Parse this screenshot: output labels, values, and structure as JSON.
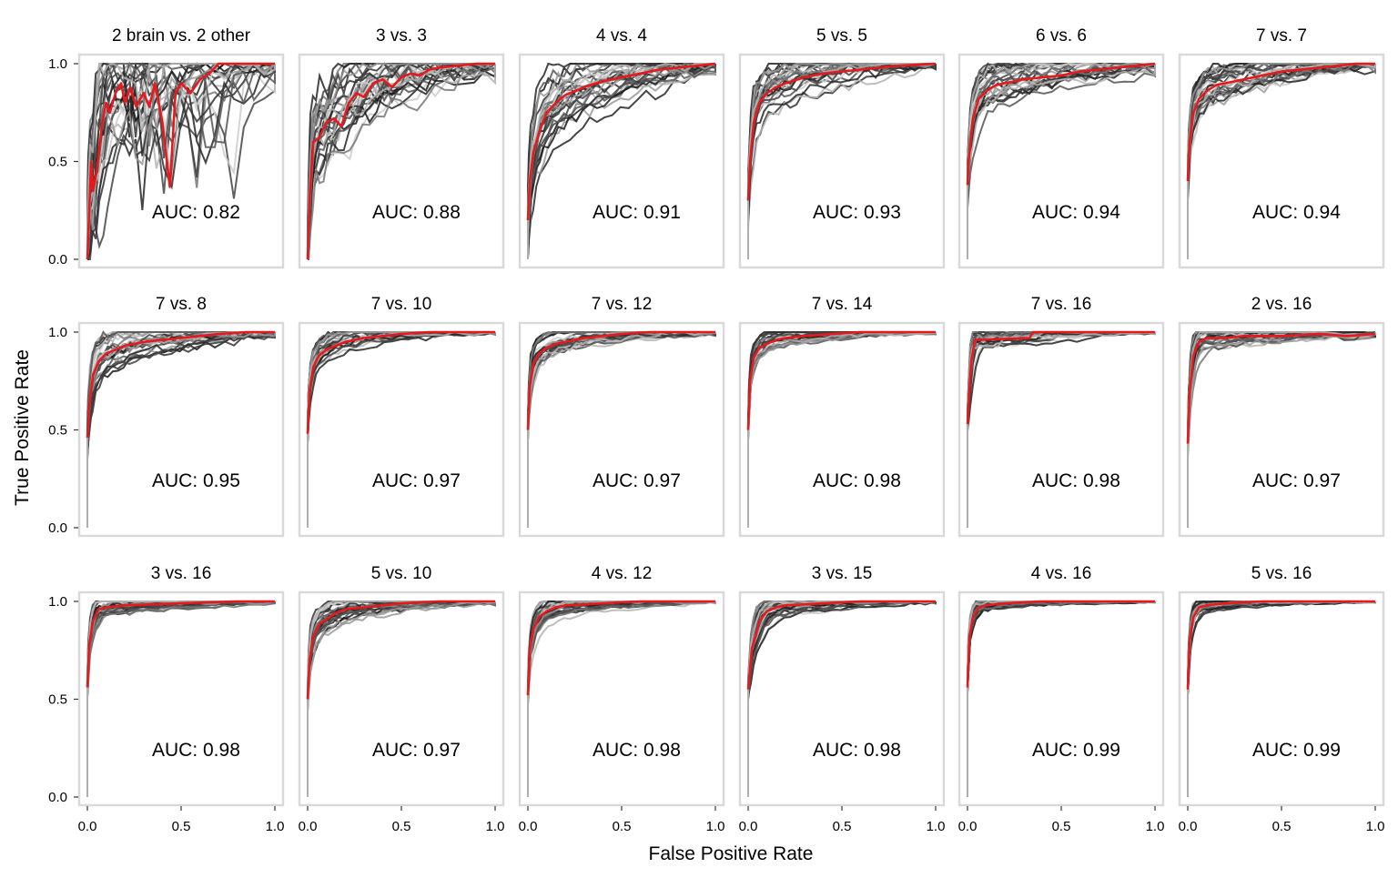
{
  "chart_data": {
    "type": "line",
    "xlabel": "False Positive Rate",
    "ylabel": "True Positive Rate",
    "xlim": [
      0,
      1
    ],
    "ylim": [
      0,
      1
    ],
    "x_ticks": [
      "0.0",
      "0.5",
      "1.0"
    ],
    "y_ticks": [
      "0.0",
      "0.5",
      "1.0"
    ],
    "grid": false,
    "legend": "none",
    "colors": {
      "mean_curve": "#e8191c",
      "bootstrap_curves": "#222222",
      "panel_border": "#d9d9d9"
    },
    "panels": [
      {
        "title": "2 brain vs. 2 other",
        "auc_label": "AUC: 0.82",
        "auc": 0.82,
        "mean_curve": [
          [
            0,
            0
          ],
          [
            0.02,
            0.5
          ],
          [
            0.03,
            0.35
          ],
          [
            0.05,
            0.45
          ],
          [
            0.08,
            0.7
          ],
          [
            0.1,
            0.8
          ],
          [
            0.12,
            0.75
          ],
          [
            0.15,
            0.85
          ],
          [
            0.18,
            0.9
          ],
          [
            0.2,
            0.8
          ],
          [
            0.23,
            0.88
          ],
          [
            0.26,
            0.78
          ],
          [
            0.3,
            0.85
          ],
          [
            0.33,
            0.78
          ],
          [
            0.36,
            0.9
          ],
          [
            0.4,
            0.7
          ],
          [
            0.44,
            0.37
          ],
          [
            0.47,
            0.85
          ],
          [
            0.5,
            0.9
          ],
          [
            0.55,
            0.85
          ],
          [
            0.6,
            0.92
          ],
          [
            0.65,
            0.95
          ],
          [
            0.7,
            1
          ],
          [
            1,
            1
          ]
        ]
      },
      {
        "title": "3 vs. 3",
        "auc_label": "AUC: 0.88",
        "auc": 0.88,
        "mean_curve": [
          [
            0,
            0
          ],
          [
            0.01,
            0.3
          ],
          [
            0.03,
            0.6
          ],
          [
            0.06,
            0.62
          ],
          [
            0.1,
            0.7
          ],
          [
            0.14,
            0.72
          ],
          [
            0.18,
            0.68
          ],
          [
            0.22,
            0.8
          ],
          [
            0.26,
            0.85
          ],
          [
            0.3,
            0.83
          ],
          [
            0.35,
            0.9
          ],
          [
            0.4,
            0.92
          ],
          [
            0.45,
            0.88
          ],
          [
            0.5,
            0.93
          ],
          [
            0.55,
            0.95
          ],
          [
            0.6,
            0.94
          ],
          [
            0.65,
            0.97
          ],
          [
            0.7,
            0.98
          ],
          [
            0.8,
            0.99
          ],
          [
            0.9,
            1
          ],
          [
            1,
            1
          ]
        ]
      },
      {
        "title": "4 vs. 4",
        "auc_label": "AUC: 0.91",
        "auc": 0.91,
        "mean_curve": [
          [
            0,
            0.2
          ],
          [
            0.01,
            0.4
          ],
          [
            0.03,
            0.55
          ],
          [
            0.06,
            0.65
          ],
          [
            0.1,
            0.75
          ],
          [
            0.15,
            0.8
          ],
          [
            0.2,
            0.84
          ],
          [
            0.3,
            0.88
          ],
          [
            0.4,
            0.91
          ],
          [
            0.5,
            0.93
          ],
          [
            0.6,
            0.95
          ],
          [
            0.7,
            0.97
          ],
          [
            0.8,
            0.98
          ],
          [
            0.9,
            0.99
          ],
          [
            1,
            1
          ]
        ]
      },
      {
        "title": "5 vs. 5",
        "auc_label": "AUC: 0.93",
        "auc": 0.93,
        "mean_curve": [
          [
            0,
            0.3
          ],
          [
            0.01,
            0.5
          ],
          [
            0.03,
            0.7
          ],
          [
            0.06,
            0.8
          ],
          [
            0.1,
            0.85
          ],
          [
            0.15,
            0.88
          ],
          [
            0.2,
            0.9
          ],
          [
            0.3,
            0.93
          ],
          [
            0.4,
            0.95
          ],
          [
            0.5,
            0.96
          ],
          [
            0.6,
            0.97
          ],
          [
            0.7,
            0.98
          ],
          [
            0.8,
            0.99
          ],
          [
            1,
            1
          ]
        ]
      },
      {
        "title": "6 vs. 6",
        "auc_label": "AUC: 0.94",
        "auc": 0.94,
        "mean_curve": [
          [
            0,
            0.38
          ],
          [
            0.01,
            0.55
          ],
          [
            0.03,
            0.72
          ],
          [
            0.06,
            0.82
          ],
          [
            0.1,
            0.86
          ],
          [
            0.15,
            0.89
          ],
          [
            0.2,
            0.9
          ],
          [
            0.3,
            0.92
          ],
          [
            0.4,
            0.93
          ],
          [
            0.5,
            0.94
          ],
          [
            0.6,
            0.96
          ],
          [
            0.7,
            0.97
          ],
          [
            0.8,
            0.98
          ],
          [
            0.9,
            0.99
          ],
          [
            1,
            1
          ]
        ]
      },
      {
        "title": "7 vs. 7",
        "auc_label": "AUC: 0.94",
        "auc": 0.94,
        "mean_curve": [
          [
            0,
            0.4
          ],
          [
            0.01,
            0.6
          ],
          [
            0.03,
            0.75
          ],
          [
            0.06,
            0.82
          ],
          [
            0.1,
            0.86
          ],
          [
            0.15,
            0.89
          ],
          [
            0.2,
            0.9
          ],
          [
            0.3,
            0.92
          ],
          [
            0.4,
            0.94
          ],
          [
            0.5,
            0.96
          ],
          [
            0.6,
            0.97
          ],
          [
            0.7,
            0.98
          ],
          [
            0.8,
            0.99
          ],
          [
            0.9,
            1
          ],
          [
            1,
            1
          ]
        ]
      },
      {
        "title": "7 vs. 8",
        "auc_label": "AUC: 0.95",
        "auc": 0.95,
        "mean_curve": [
          [
            0,
            0.46
          ],
          [
            0.01,
            0.62
          ],
          [
            0.03,
            0.78
          ],
          [
            0.06,
            0.85
          ],
          [
            0.1,
            0.89
          ],
          [
            0.15,
            0.91
          ],
          [
            0.2,
            0.93
          ],
          [
            0.3,
            0.95
          ],
          [
            0.4,
            0.96
          ],
          [
            0.5,
            0.97
          ],
          [
            0.6,
            0.98
          ],
          [
            0.7,
            0.99
          ],
          [
            0.85,
            1
          ],
          [
            1,
            1
          ]
        ]
      },
      {
        "title": "7 vs. 10",
        "auc_label": "AUC: 0.97",
        "auc": 0.97,
        "mean_curve": [
          [
            0,
            0.48
          ],
          [
            0.01,
            0.7
          ],
          [
            0.03,
            0.82
          ],
          [
            0.06,
            0.88
          ],
          [
            0.1,
            0.91
          ],
          [
            0.15,
            0.93
          ],
          [
            0.2,
            0.95
          ],
          [
            0.3,
            0.97
          ],
          [
            0.4,
            0.98
          ],
          [
            0.5,
            0.99
          ],
          [
            0.65,
            1
          ],
          [
            1,
            1
          ]
        ]
      },
      {
        "title": "7 vs. 12",
        "auc_label": "AUC: 0.97",
        "auc": 0.97,
        "mean_curve": [
          [
            0,
            0.5
          ],
          [
            0.01,
            0.72
          ],
          [
            0.03,
            0.84
          ],
          [
            0.06,
            0.89
          ],
          [
            0.1,
            0.92
          ],
          [
            0.15,
            0.94
          ],
          [
            0.2,
            0.95
          ],
          [
            0.3,
            0.97
          ],
          [
            0.4,
            0.98
          ],
          [
            0.5,
            0.99
          ],
          [
            0.65,
            1
          ],
          [
            1,
            1
          ]
        ]
      },
      {
        "title": "7 vs. 14",
        "auc_label": "AUC: 0.98",
        "auc": 0.98,
        "mean_curve": [
          [
            0,
            0.5
          ],
          [
            0.01,
            0.75
          ],
          [
            0.03,
            0.87
          ],
          [
            0.06,
            0.92
          ],
          [
            0.1,
            0.94
          ],
          [
            0.15,
            0.96
          ],
          [
            0.2,
            0.97
          ],
          [
            0.3,
            0.98
          ],
          [
            0.45,
            0.99
          ],
          [
            0.6,
            1
          ],
          [
            1,
            1
          ]
        ]
      },
      {
        "title": "7 vs. 16",
        "auc_label": "AUC: 0.98",
        "auc": 0.98,
        "mean_curve": [
          [
            0,
            0.53
          ],
          [
            0.01,
            0.7
          ],
          [
            0.02,
            0.85
          ],
          [
            0.04,
            0.96
          ],
          [
            0.33,
            0.97
          ],
          [
            0.35,
            1
          ],
          [
            1,
            1
          ]
        ]
      },
      {
        "title": "2 vs. 16",
        "auc_label": "AUC: 0.97",
        "auc": 0.97,
        "mean_curve": [
          [
            0,
            0.43
          ],
          [
            0.01,
            0.7
          ],
          [
            0.03,
            0.88
          ],
          [
            0.06,
            0.95
          ],
          [
            0.1,
            0.97
          ],
          [
            0.2,
            0.97
          ],
          [
            0.3,
            0.98
          ],
          [
            0.5,
            0.98
          ],
          [
            0.7,
            0.99
          ],
          [
            0.85,
            0.98
          ],
          [
            1,
            0.99
          ]
        ]
      },
      {
        "title": "3 vs. 16",
        "auc_label": "AUC: 0.98",
        "auc": 0.98,
        "mean_curve": [
          [
            0,
            0.56
          ],
          [
            0.01,
            0.78
          ],
          [
            0.03,
            0.9
          ],
          [
            0.06,
            0.96
          ],
          [
            0.1,
            0.97
          ],
          [
            0.2,
            0.98
          ],
          [
            0.5,
            0.99
          ],
          [
            0.8,
            1
          ],
          [
            1,
            1
          ]
        ]
      },
      {
        "title": "5 vs. 10",
        "auc_label": "AUC: 0.97",
        "auc": 0.97,
        "mean_curve": [
          [
            0,
            0.5
          ],
          [
            0.01,
            0.7
          ],
          [
            0.03,
            0.82
          ],
          [
            0.06,
            0.88
          ],
          [
            0.1,
            0.91
          ],
          [
            0.15,
            0.94
          ],
          [
            0.2,
            0.96
          ],
          [
            0.3,
            0.97
          ],
          [
            0.4,
            0.98
          ],
          [
            0.5,
            0.99
          ],
          [
            0.7,
            1
          ],
          [
            1,
            1
          ]
        ]
      },
      {
        "title": "4 vs. 12",
        "auc_label": "AUC: 0.98",
        "auc": 0.98,
        "mean_curve": [
          [
            0,
            0.52
          ],
          [
            0.01,
            0.75
          ],
          [
            0.03,
            0.86
          ],
          [
            0.06,
            0.92
          ],
          [
            0.1,
            0.95
          ],
          [
            0.15,
            0.97
          ],
          [
            0.2,
            0.98
          ],
          [
            0.4,
            0.99
          ],
          [
            0.6,
            1
          ],
          [
            1,
            1
          ]
        ]
      },
      {
        "title": "3 vs. 15",
        "auc_label": "AUC: 0.98",
        "auc": 0.98,
        "mean_curve": [
          [
            0,
            0.55
          ],
          [
            0.02,
            0.76
          ],
          [
            0.04,
            0.82
          ],
          [
            0.06,
            0.9
          ],
          [
            0.1,
            0.95
          ],
          [
            0.15,
            0.97
          ],
          [
            0.2,
            0.98
          ],
          [
            0.4,
            0.99
          ],
          [
            0.6,
            1
          ],
          [
            1,
            1
          ]
        ]
      },
      {
        "title": "4 vs. 16",
        "auc_label": "AUC: 0.99",
        "auc": 0.99,
        "mean_curve": [
          [
            0,
            0.56
          ],
          [
            0.01,
            0.82
          ],
          [
            0.03,
            0.92
          ],
          [
            0.06,
            0.97
          ],
          [
            0.1,
            0.98
          ],
          [
            0.2,
            0.99
          ],
          [
            0.4,
            1
          ],
          [
            1,
            1
          ]
        ]
      },
      {
        "title": "5 vs. 16",
        "auc_label": "AUC: 0.99",
        "auc": 0.99,
        "mean_curve": [
          [
            0,
            0.55
          ],
          [
            0.01,
            0.8
          ],
          [
            0.03,
            0.92
          ],
          [
            0.06,
            0.97
          ],
          [
            0.1,
            0.98
          ],
          [
            0.2,
            0.99
          ],
          [
            0.4,
            1
          ],
          [
            1,
            1
          ]
        ]
      }
    ]
  }
}
